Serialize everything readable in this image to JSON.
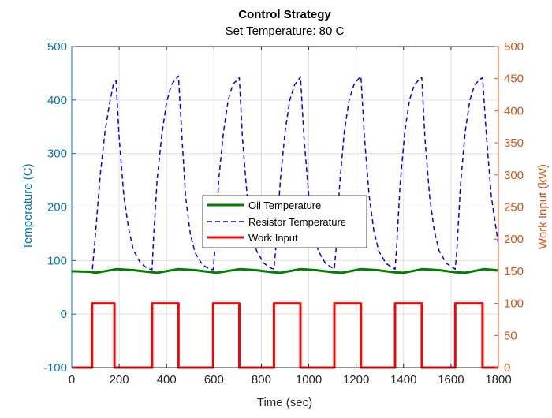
{
  "chart_data": {
    "type": "line",
    "title": "Control Strategy",
    "subtitle": "Set Temperature: 80 C",
    "xlabel": "Time (sec)",
    "ylabel_left": "Temperature (C)",
    "ylabel_right": "Work Input (kW)",
    "xlim": [
      0,
      1800
    ],
    "ylim_left": [
      -100,
      500
    ],
    "ylim_right": [
      0,
      500
    ],
    "x_ticks": [
      0,
      200,
      400,
      600,
      800,
      1000,
      1200,
      1400,
      1600,
      1800
    ],
    "y_left_ticks": [
      -100,
      0,
      100,
      200,
      300,
      400,
      500
    ],
    "y_right_ticks": [
      0,
      50,
      100,
      150,
      200,
      250,
      300,
      350,
      400,
      450,
      500
    ],
    "grid": true,
    "legend_position": "center",
    "colors": {
      "left_axis": "#0072BD",
      "right_axis": "#D95319",
      "oil": "#008000",
      "resistor": "#0000FF",
      "work": "#FF0000",
      "grid": "#DFDFDF"
    },
    "series": [
      {
        "name": "Oil Temperature",
        "axis": "left",
        "style": "solid",
        "x": [
          0,
          80,
          100,
          190,
          260,
          340,
          360,
          450,
          520,
          595,
          610,
          710,
          775,
          850,
          880,
          965,
          1030,
          1105,
          1140,
          1220,
          1290,
          1360,
          1400,
          1480,
          1550,
          1620,
          1660,
          1740,
          1790,
          1800
        ],
        "y": [
          80,
          79,
          77,
          84,
          82,
          78,
          77,
          84,
          82,
          78,
          77,
          84,
          82,
          78,
          77,
          84,
          82,
          78,
          77,
          84,
          82,
          78,
          77,
          84,
          82,
          78,
          77,
          84,
          82,
          81
        ]
      },
      {
        "name": "Resistor Temperature",
        "axis": "left",
        "style": "dashed",
        "x": [
          0,
          60,
          86,
          100,
          120,
          140,
          160,
          175,
          180,
          187,
          200,
          220,
          240,
          260,
          290,
          320,
          339,
          345,
          360,
          380,
          400,
          420,
          440,
          445,
          450,
          465,
          480,
          500,
          520,
          550,
          580,
          597,
          605,
          620,
          640,
          660,
          680,
          700,
          707,
          720,
          740,
          760,
          780,
          810,
          840,
          853,
          860,
          880,
          900,
          920,
          940,
          960,
          965,
          980,
          1000,
          1020,
          1040,
          1070,
          1100,
          1108,
          1115,
          1130,
          1150,
          1170,
          1190,
          1210,
          1220,
          1235,
          1255,
          1275,
          1295,
          1325,
          1355,
          1364,
          1370,
          1385,
          1405,
          1425,
          1445,
          1465,
          1477,
          1490,
          1510,
          1530,
          1550,
          1580,
          1610,
          1618,
          1625,
          1640,
          1660,
          1680,
          1700,
          1720,
          1733,
          1750,
          1770,
          1790,
          1800
        ],
        "y": [
          80,
          79,
          78,
          150,
          260,
          340,
          395,
          428,
          432,
          436,
          330,
          220,
          160,
          120,
          95,
          85,
          83,
          140,
          250,
          335,
          395,
          428,
          440,
          442,
          445,
          330,
          220,
          150,
          115,
          93,
          84,
          83,
          125,
          250,
          340,
          400,
          430,
          438,
          442,
          330,
          220,
          155,
          118,
          95,
          86,
          84,
          120,
          250,
          340,
          400,
          428,
          440,
          444,
          330,
          220,
          155,
          118,
          95,
          86,
          84,
          120,
          240,
          340,
          400,
          428,
          440,
          444,
          330,
          220,
          155,
          118,
          95,
          86,
          84,
          120,
          240,
          340,
          400,
          428,
          438,
          442,
          330,
          220,
          155,
          118,
          95,
          86,
          84,
          120,
          240,
          340,
          400,
          428,
          438,
          442,
          330,
          220,
          160,
          130
        ]
      },
      {
        "name": "Work Input",
        "axis": "right",
        "style": "solid",
        "x": [
          0,
          86,
          86,
          180,
          180,
          339,
          339,
          450,
          450,
          597,
          597,
          707,
          707,
          853,
          853,
          965,
          965,
          1108,
          1108,
          1220,
          1220,
          1364,
          1364,
          1477,
          1477,
          1618,
          1618,
          1733,
          1733,
          1800
        ],
        "y": [
          0,
          0,
          100,
          100,
          0,
          0,
          100,
          100,
          0,
          0,
          100,
          100,
          0,
          0,
          100,
          100,
          0,
          0,
          100,
          100,
          0,
          0,
          100,
          100,
          0,
          0,
          100,
          100,
          0,
          0
        ]
      }
    ]
  }
}
